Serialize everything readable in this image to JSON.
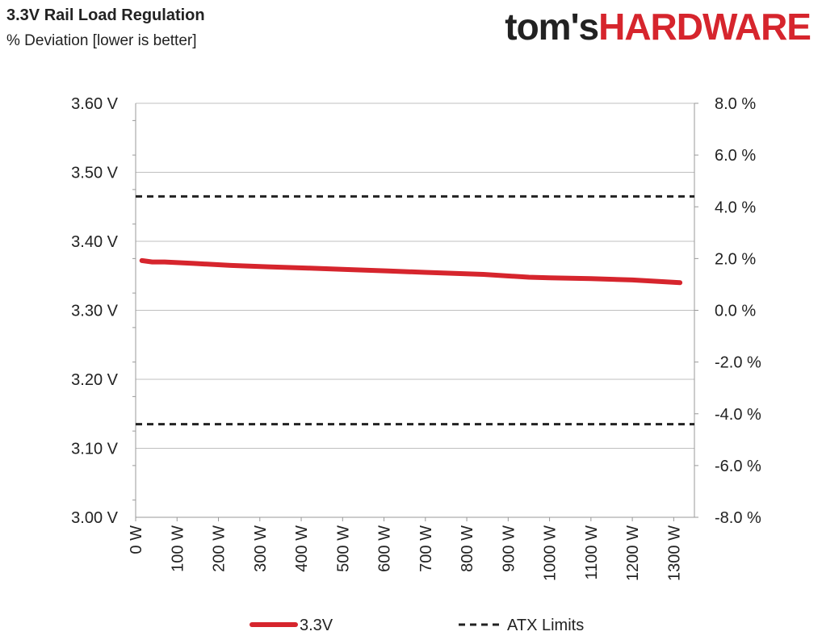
{
  "header": {
    "logo_part1": "tom's",
    "logo_part2": "HARDWARE"
  },
  "chart_data": {
    "type": "line",
    "title": "3.3V Rail Load Regulation",
    "subtitle": "% Deviation [lower is better]",
    "xlabel": "",
    "ylabel": "",
    "x_ticks": [
      "0 W",
      "100 W",
      "200 W",
      "300 W",
      "400 W",
      "500 W",
      "600 W",
      "700 W",
      "800 W",
      "900 W",
      "1000 W",
      "1100 W",
      "1200 W",
      "1300 W"
    ],
    "xlim": [
      0,
      1350
    ],
    "y_left_ticks": [
      "3.00 V",
      "3.10 V",
      "3.20 V",
      "3.30 V",
      "3.40 V",
      "3.50 V",
      "3.60 V"
    ],
    "ylim_left": [
      3.0,
      3.6
    ],
    "y_right_ticks": [
      "-8.0 %",
      "-6.0 %",
      "-4.0 %",
      "-2.0 %",
      "0.0 %",
      "2.0 %",
      "4.0 %",
      "6.0 %",
      "8.0 %"
    ],
    "ylim_right": [
      -8,
      8
    ],
    "grid": true,
    "legend_position": "bottom",
    "series": [
      {
        "name": "3.3V",
        "color": "#d6252d",
        "x": [
          15,
          40,
          70,
          140,
          230,
          320,
          420,
          520,
          610,
          700,
          840,
          950,
          1000,
          1100,
          1200,
          1315
        ],
        "y": [
          3.372,
          3.37,
          3.37,
          3.368,
          3.365,
          3.363,
          3.361,
          3.359,
          3.357,
          3.355,
          3.352,
          3.348,
          3.347,
          3.346,
          3.344,
          3.34
        ]
      },
      {
        "name": "ATX Limits",
        "color": "#222222",
        "style": "dashed",
        "upper": 3.465,
        "lower": 3.135
      }
    ]
  }
}
